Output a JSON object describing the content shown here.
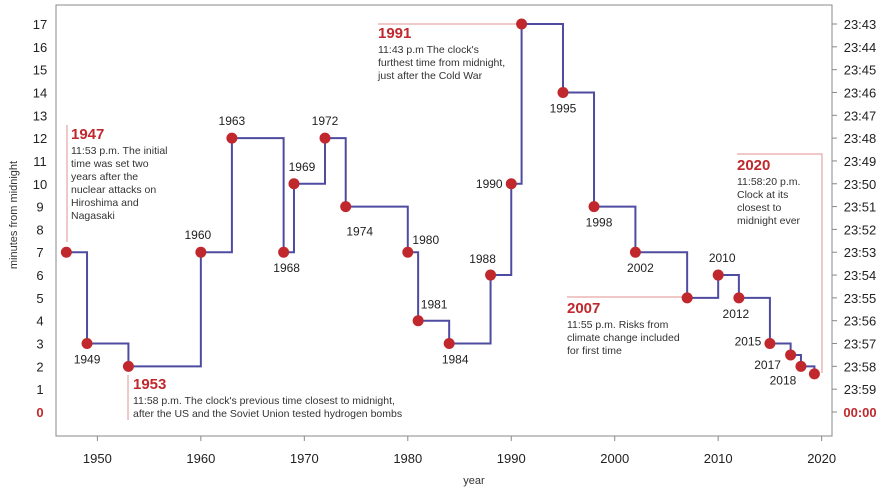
{
  "chart_data": {
    "type": "line",
    "step": true,
    "xlabel": "year",
    "ylabel": "minutes from midnight",
    "xlim": [
      1946,
      2021
    ],
    "ylim": [
      0,
      17.5
    ],
    "x_ticks": [
      1950,
      1960,
      1970,
      1980,
      1990,
      2000,
      2010,
      2020
    ],
    "y_ticks_left": [
      "0",
      "1",
      "2",
      "3",
      "4",
      "5",
      "6",
      "7",
      "8",
      "9",
      "10",
      "11",
      "12",
      "13",
      "14",
      "15",
      "16",
      "17"
    ],
    "y_ticks_right": [
      "00:00",
      "23:59",
      "23:58",
      "23:57",
      "23:56",
      "23:55",
      "23:54",
      "23:53",
      "23:52",
      "23:51",
      "23:50",
      "23:49",
      "23:48",
      "23:47",
      "23:46",
      "23:45",
      "23:44",
      "23:43"
    ],
    "line_color": "#4e4ba0",
    "point_color": "#c0282d",
    "points": [
      {
        "year": 1947,
        "minutes": 7,
        "label": ""
      },
      {
        "year": 1949,
        "minutes": 3,
        "label": "1949"
      },
      {
        "year": 1953,
        "minutes": 2,
        "label": ""
      },
      {
        "year": 1960,
        "minutes": 7,
        "label": "1960"
      },
      {
        "year": 1963,
        "minutes": 12,
        "label": "1963"
      },
      {
        "year": 1968,
        "minutes": 7,
        "label": "1968"
      },
      {
        "year": 1969,
        "minutes": 10,
        "label": "1969"
      },
      {
        "year": 1972,
        "minutes": 12,
        "label": "1972"
      },
      {
        "year": 1974,
        "minutes": 9,
        "label": "1974"
      },
      {
        "year": 1980,
        "minutes": 7,
        "label": "1980"
      },
      {
        "year": 1981,
        "minutes": 4,
        "label": "1981"
      },
      {
        "year": 1984,
        "minutes": 3,
        "label": "1984"
      },
      {
        "year": 1988,
        "minutes": 6,
        "label": "1988"
      },
      {
        "year": 1990,
        "minutes": 10,
        "label": "1990"
      },
      {
        "year": 1991,
        "minutes": 17,
        "label": ""
      },
      {
        "year": 1995,
        "minutes": 14,
        "label": "1995"
      },
      {
        "year": 1998,
        "minutes": 9,
        "label": "1998"
      },
      {
        "year": 2002,
        "minutes": 7,
        "label": "2002"
      },
      {
        "year": 2007,
        "minutes": 5,
        "label": ""
      },
      {
        "year": 2010,
        "minutes": 6,
        "label": "2010"
      },
      {
        "year": 2012,
        "minutes": 5,
        "label": "2012"
      },
      {
        "year": 2015,
        "minutes": 3,
        "label": "2015"
      },
      {
        "year": 2017,
        "minutes": 2.5,
        "label": "2017"
      },
      {
        "year": 2018,
        "minutes": 2,
        "label": "2018"
      },
      {
        "year": 2019.3,
        "minutes": 1.67,
        "label": ""
      }
    ],
    "annotations": [
      {
        "year": "1947",
        "lines": [
          "11:53 p.m. The initial",
          "time was set two",
          "years after the",
          "nuclear attacks on",
          "Hiroshima and",
          "Nagasaki"
        ],
        "anchor_year": 1947,
        "anchor_minutes": 7
      },
      {
        "year": "1953",
        "lines": [
          "11:58 p.m. The clock's previous time closest to midnight,",
          "after the US and the Soviet Union tested hydrogen bombs"
        ],
        "anchor_year": 1953,
        "anchor_minutes": 2
      },
      {
        "year": "1991",
        "lines": [
          "11:43 p.m The clock's",
          "furthest time from midnight,",
          "just after the Cold War"
        ],
        "anchor_year": 1991,
        "anchor_minutes": 17
      },
      {
        "year": "2007",
        "lines": [
          "11:55 p.m. Risks from",
          "climate change included",
          "for first time"
        ],
        "anchor_year": 2007,
        "anchor_minutes": 5
      },
      {
        "year": "2020",
        "lines": [
          "11:58:20 p.m.",
          "Clock at its",
          "closest to",
          "midnight ever"
        ],
        "anchor_year": 2019.3,
        "anchor_minutes": 1.67
      }
    ]
  }
}
